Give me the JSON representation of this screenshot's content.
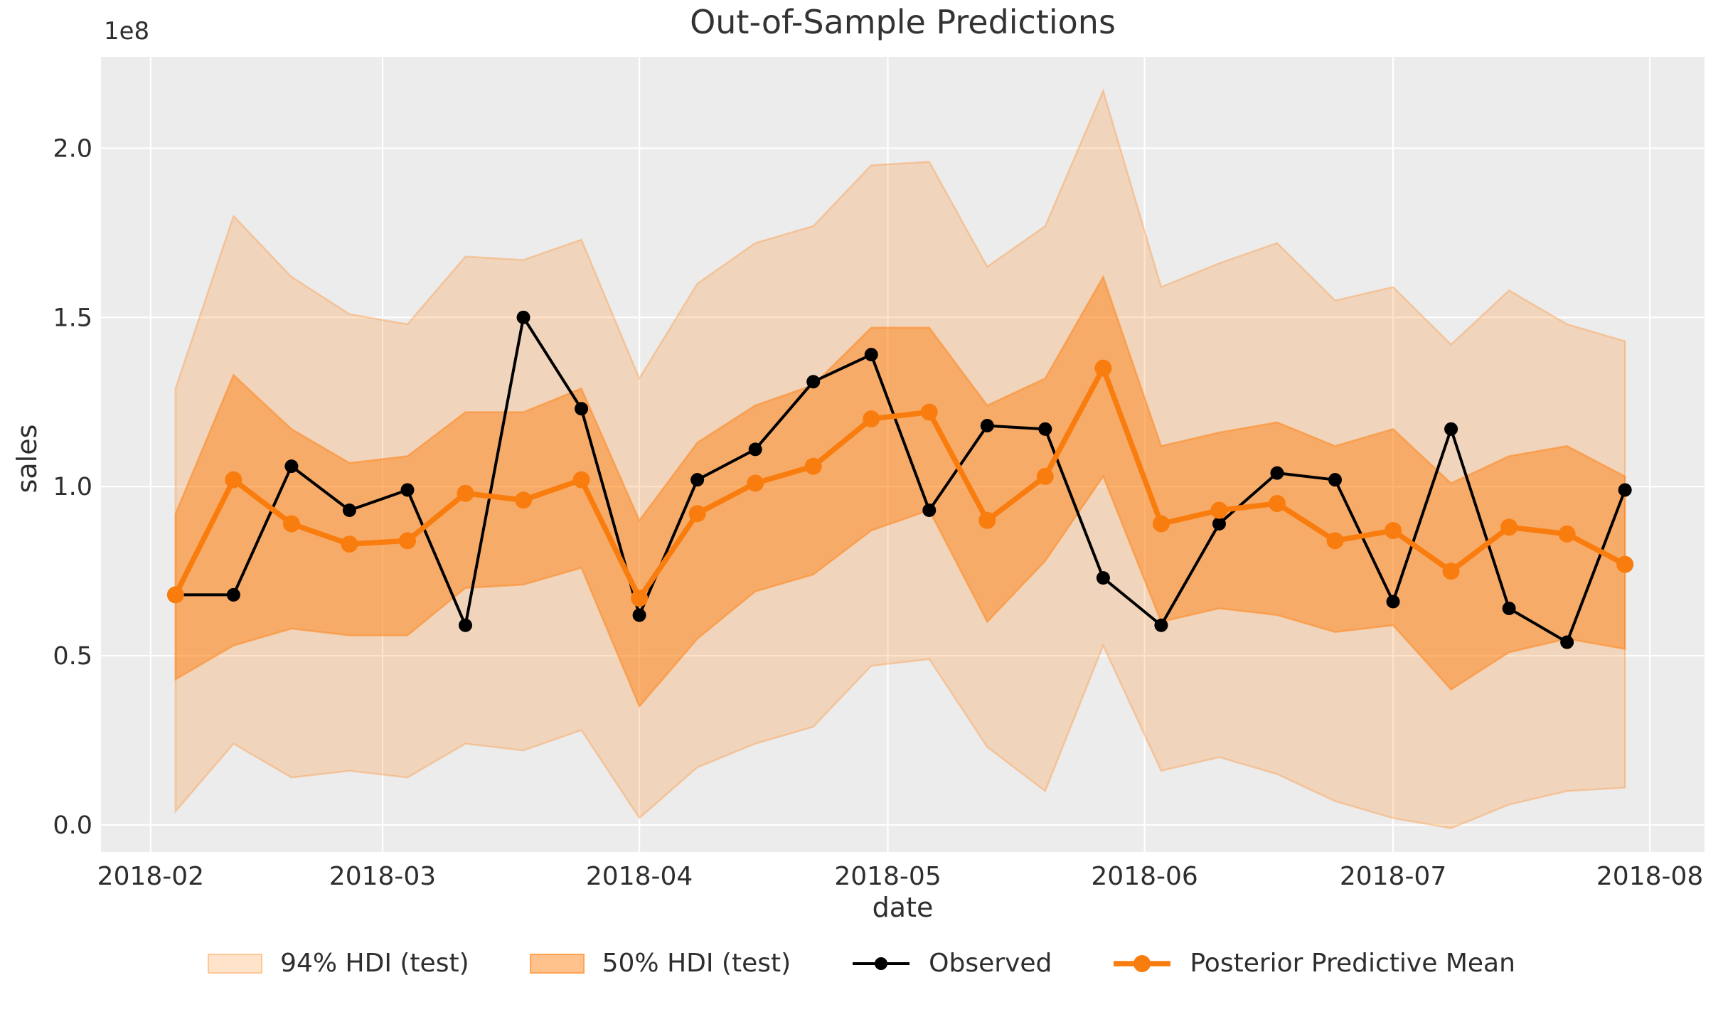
{
  "colors": {
    "figure_bg": "#ffffff",
    "plot_bg": "#ECECEC",
    "grid": "#ffffff",
    "text": "#2e2e2e",
    "observed": "#000000",
    "posterior_mean": "#F97D0E",
    "hdi_base_rgb": "255,127,14",
    "hdi94_fill": "rgba(255,127,14,0.22)",
    "hdi94_edge": "rgba(255,127,14,0.28)",
    "hdi50_fill": "rgba(255,127,14,0.48)",
    "hdi50_edge": "rgba(255,127,14,0.45)"
  },
  "chart_data": {
    "type": "line",
    "title": "Out-of-Sample Predictions",
    "xlabel": "date",
    "ylabel": "sales",
    "y_offset_label": "1e8",
    "unit": "1e8",
    "grid": true,
    "legend_position": "lower center",
    "xlim_days": [
      -6.0,
      187.6
    ],
    "ylim": [
      -0.08,
      2.27
    ],
    "x_dates": [
      "2018-02-04",
      "2018-02-11",
      "2018-02-18",
      "2018-02-25",
      "2018-03-04",
      "2018-03-11",
      "2018-03-18",
      "2018-03-25",
      "2018-04-01",
      "2018-04-08",
      "2018-04-15",
      "2018-04-22",
      "2018-04-29",
      "2018-05-06",
      "2018-05-13",
      "2018-05-20",
      "2018-05-27",
      "2018-06-03",
      "2018-06-10",
      "2018-06-17",
      "2018-06-24",
      "2018-07-01",
      "2018-07-08",
      "2018-07-15",
      "2018-07-22",
      "2018-07-29"
    ],
    "x_days": [
      3,
      10,
      17,
      24,
      31,
      38,
      45,
      52,
      59,
      66,
      73,
      80,
      87,
      94,
      101,
      108,
      115,
      122,
      129,
      136,
      143,
      150,
      157,
      164,
      171,
      178
    ],
    "series": [
      {
        "name": "Observed",
        "color": "#000000",
        "line_width": 4,
        "marker_radius": 9.5,
        "values": [
          0.68,
          0.68,
          1.06,
          0.93,
          0.99,
          0.59,
          1.5,
          1.23,
          0.62,
          1.02,
          1.11,
          1.31,
          1.39,
          0.93,
          1.18,
          1.17,
          0.73,
          0.59,
          0.89,
          1.04,
          1.02,
          0.66,
          1.17,
          0.64,
          0.54,
          0.99
        ]
      },
      {
        "name": "Posterior Predictive Mean",
        "color": "#F97D0E",
        "line_width": 7.5,
        "marker_radius": 12,
        "values": [
          0.68,
          1.02,
          0.89,
          0.83,
          0.84,
          0.98,
          0.96,
          1.02,
          0.67,
          0.92,
          1.01,
          1.06,
          1.2,
          1.22,
          0.9,
          1.03,
          1.35,
          0.89,
          0.93,
          0.95,
          0.84,
          0.87,
          0.75,
          0.88,
          0.86,
          0.77
        ]
      }
    ],
    "bands": [
      {
        "name": "94% HDI (test)",
        "fill": "rgba(255,127,14,0.22)",
        "edge": "rgba(255,127,14,0.28)",
        "hi": [
          1.29,
          1.8,
          1.62,
          1.51,
          1.48,
          1.68,
          1.67,
          1.73,
          1.32,
          1.6,
          1.72,
          1.77,
          1.95,
          1.96,
          1.65,
          1.77,
          2.17,
          1.59,
          1.66,
          1.72,
          1.55,
          1.59,
          1.42,
          1.58,
          1.48,
          1.43
        ],
        "lo": [
          0.04,
          0.24,
          0.14,
          0.16,
          0.14,
          0.24,
          0.22,
          0.28,
          0.02,
          0.17,
          0.24,
          0.29,
          0.47,
          0.49,
          0.23,
          0.1,
          0.53,
          0.16,
          0.2,
          0.15,
          0.07,
          0.02,
          -0.01,
          0.06,
          0.1,
          0.11
        ]
      },
      {
        "name": "50% HDI (test)",
        "fill": "rgba(255,127,14,0.48)",
        "edge": "rgba(255,127,14,0.45)",
        "hi": [
          0.92,
          1.33,
          1.17,
          1.07,
          1.09,
          1.22,
          1.22,
          1.29,
          0.9,
          1.13,
          1.24,
          1.3,
          1.47,
          1.47,
          1.24,
          1.32,
          1.62,
          1.12,
          1.16,
          1.19,
          1.12,
          1.17,
          1.01,
          1.09,
          1.12,
          1.03
        ],
        "lo": [
          0.43,
          0.53,
          0.58,
          0.56,
          0.56,
          0.7,
          0.71,
          0.76,
          0.35,
          0.55,
          0.69,
          0.74,
          0.87,
          0.93,
          0.6,
          0.78,
          1.03,
          0.6,
          0.64,
          0.62,
          0.57,
          0.59,
          0.4,
          0.51,
          0.55,
          0.52
        ]
      }
    ],
    "xticks": [
      {
        "label": "2018-02",
        "day": 0
      },
      {
        "label": "2018-03",
        "day": 28
      },
      {
        "label": "2018-04",
        "day": 59
      },
      {
        "label": "2018-05",
        "day": 89
      },
      {
        "label": "2018-06",
        "day": 120
      },
      {
        "label": "2018-07",
        "day": 150
      },
      {
        "label": "2018-08",
        "day": 181
      }
    ],
    "yticks": [
      {
        "label": "0.0",
        "value": 0.0
      },
      {
        "label": "0.5",
        "value": 0.5
      },
      {
        "label": "1.0",
        "value": 1.0
      },
      {
        "label": "1.5",
        "value": 1.5
      },
      {
        "label": "2.0",
        "value": 2.0
      }
    ],
    "legend": [
      {
        "label": "94% HDI (test)",
        "type": "band",
        "fill": "rgba(255,127,14,0.22)",
        "edge": "rgba(255,127,14,0.28)"
      },
      {
        "label": "50% HDI (test)",
        "type": "band",
        "fill": "rgba(255,127,14,0.48)",
        "edge": "rgba(255,127,14,0.45)"
      },
      {
        "label": "Observed",
        "type": "line",
        "color": "#000000",
        "line_width": 4,
        "marker_radius": 9
      },
      {
        "label": "Posterior Predictive Mean",
        "type": "line",
        "color": "#F97D0E",
        "line_width": 7.5,
        "marker_radius": 12
      }
    ]
  }
}
